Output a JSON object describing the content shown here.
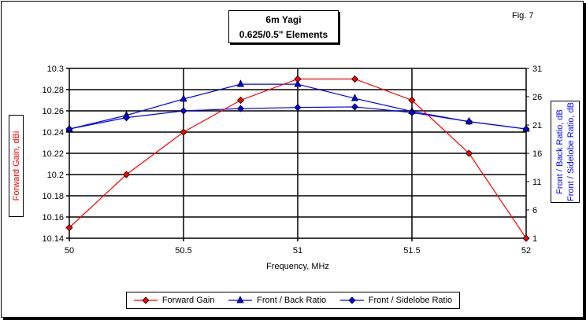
{
  "chart_data": {
    "type": "line",
    "title": "6m Yagi",
    "subtitle": "0.625/0.5\" Elements",
    "annotation": "Fig. 7",
    "xlabel": "Frequency, MHz",
    "ylabel": "Forward Gain,  dBi",
    "y2label": [
      "Front / Back Ratio,  dB",
      "Front / Sidelobe Ratio,  dB"
    ],
    "xlim": [
      50,
      52
    ],
    "ylim": [
      10.14,
      10.3
    ],
    "y2lim": [
      1,
      31
    ],
    "xticks": [
      "50",
      "50.5",
      "51",
      "51.5",
      "52"
    ],
    "yticks": [
      "10.14",
      "10.16",
      "10.18",
      "10.2",
      "10.22",
      "10.24",
      "10.26",
      "10.28",
      "10.3"
    ],
    "y2ticks": [
      "1",
      "6",
      "11",
      "16",
      "21",
      "26",
      "31"
    ],
    "grid": true,
    "legend_position": "bottom",
    "x": [
      50,
      50.25,
      50.5,
      50.75,
      51,
      51.25,
      51.5,
      51.75,
      52
    ],
    "series": [
      {
        "name": "Forward Gain",
        "axis": "left",
        "color": "#ff0000",
        "marker": "diamond",
        "values": [
          10.15,
          10.2,
          10.24,
          10.27,
          10.29,
          10.29,
          10.27,
          10.22,
          10.14
        ]
      },
      {
        "name": "Front / Back Ratio",
        "axis": "right",
        "color": "#0000ff",
        "marker": "triangle",
        "values": [
          20.3,
          22.7,
          25.6,
          28.2,
          28.2,
          25.7,
          23.4,
          21.6,
          20.3
        ]
      },
      {
        "name": "Front / Sidelobe Ratio",
        "axis": "right",
        "color": "#0000ff",
        "marker": "diamond",
        "values": [
          20.3,
          22.3,
          23.5,
          23.9,
          24.1,
          24.2,
          23.2,
          21.6,
          20.3
        ]
      }
    ]
  }
}
